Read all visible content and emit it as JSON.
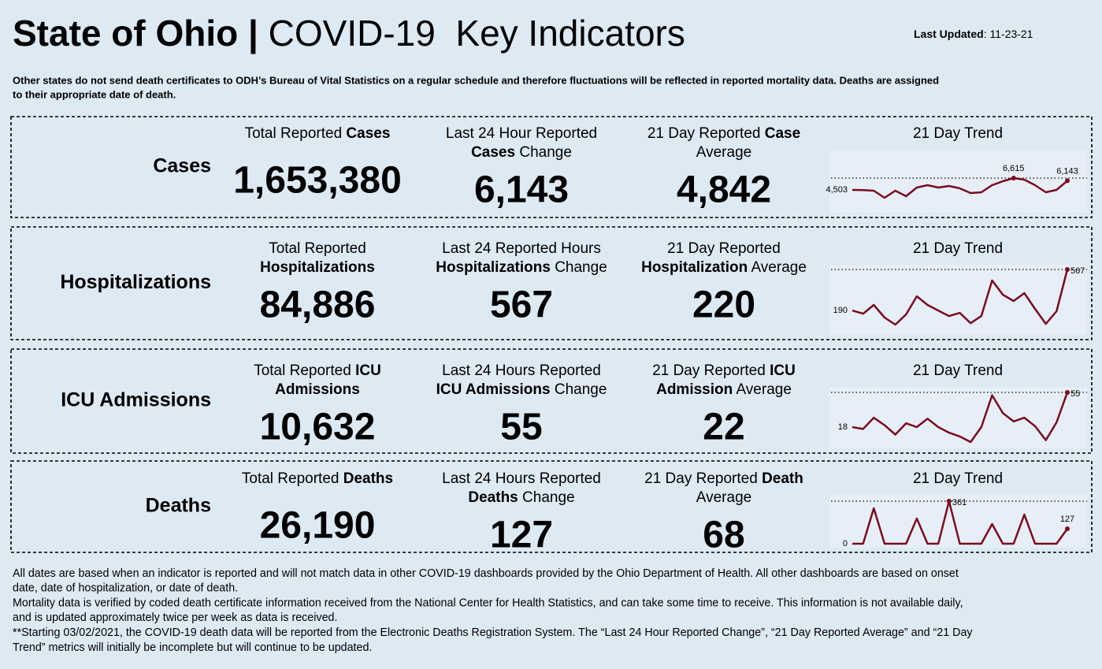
{
  "header": {
    "title": [
      {
        "text": "State of Ohio | ",
        "bold": true
      },
      {
        "text": "COVID-19  Key Indicators",
        "bold": false
      }
    ],
    "updated": [
      {
        "text": "Last Updated",
        "bold": true
      },
      {
        "text": ": 11-23-21",
        "bold": false
      }
    ],
    "note": [
      "Other states do not send death certificates to ODH’s Bureau of Vital Statistics on a regular schedule and therefore fluctuations will be reflected in reported mortality data. Deaths are assigned",
      "to their appropriate date of death."
    ]
  },
  "sections": [
    {
      "label": "Cases",
      "metrics": [
        {
          "heading": [
            [
              {
                "text": "Total Reported ",
                "bold": false
              },
              {
                "text": "Cases",
                "bold": true
              }
            ]
          ],
          "value": "1,653,380"
        },
        {
          "heading": [
            [
              {
                "text": "Last 24 Hour Reported",
                "bold": false
              }
            ],
            [
              {
                "text": "Cases",
                "bold": true
              },
              {
                "text": " Change",
                "bold": false
              }
            ]
          ],
          "value": "6,143"
        },
        {
          "heading": [
            [
              {
                "text": "21 Day Reported ",
                "bold": false
              },
              {
                "text": "Case",
                "bold": true
              }
            ],
            [
              {
                "text": "Average",
                "bold": false
              }
            ]
          ],
          "value": "4,842"
        }
      ],
      "trend": {
        "title": "21 Day Trend",
        "values": [
          4503,
          4480,
          4362,
          3095,
          4362,
          3377,
          4925,
          5348,
          4925,
          5207,
          4785,
          3940,
          4081,
          5348,
          6052,
          6615,
          6333,
          5348,
          4081,
          4503,
          6143
        ],
        "value_labels": [
          "4,503",
          null,
          null,
          null,
          null,
          null,
          null,
          null,
          null,
          null,
          null,
          null,
          null,
          null,
          null,
          "6,615",
          null,
          null,
          null,
          null,
          "6,143"
        ]
      }
    },
    {
      "label": "Hospitalizations",
      "metrics": [
        {
          "heading": [
            [
              {
                "text": "Total Reported",
                "bold": false
              }
            ],
            [
              {
                "text": "Hospitalizations",
                "bold": true
              }
            ]
          ],
          "value": "84,886"
        },
        {
          "heading": [
            [
              {
                "text": "Last 24 Reported Hours",
                "bold": false
              }
            ],
            [
              {
                "text": "Hospitalizations",
                "bold": true
              },
              {
                "text": " Change",
                "bold": false
              }
            ]
          ],
          "value": "567"
        },
        {
          "heading": [
            [
              {
                "text": "21 Day Reported",
                "bold": false
              }
            ],
            [
              {
                "text": "Hospitalization",
                "bold": true
              },
              {
                "text": " Average",
                "bold": false
              }
            ]
          ],
          "value": "220"
        }
      ],
      "trend": {
        "title": "21 Day Trend",
        "values": [
          190,
          161,
          241,
          125,
          60,
          154,
          321,
          241,
          190,
          139,
          168,
          74,
          139,
          466,
          335,
          277,
          350,
          205,
          67,
          183,
          567
        ],
        "value_labels": [
          "190",
          null,
          null,
          null,
          null,
          null,
          null,
          null,
          null,
          null,
          null,
          null,
          null,
          null,
          null,
          null,
          null,
          null,
          null,
          null,
          "567"
        ]
      }
    },
    {
      "label": "ICU Admissions",
      "metrics": [
        {
          "heading": [
            [
              {
                "text": "Total Reported ",
                "bold": false
              },
              {
                "text": "ICU",
                "bold": true
              }
            ],
            [
              {
                "text": "Admissions",
                "bold": true
              }
            ]
          ],
          "value": "10,632"
        },
        {
          "heading": [
            [
              {
                "text": "Last 24 Hours Reported",
                "bold": false
              }
            ],
            [
              {
                "text": "ICU Admissions",
                "bold": true
              },
              {
                "text": " Change",
                "bold": false
              }
            ]
          ],
          "value": "55"
        },
        {
          "heading": [
            [
              {
                "text": "21 Day Reported ",
                "bold": false
              },
              {
                "text": "ICU",
                "bold": true
              }
            ],
            [
              {
                "text": "Admission",
                "bold": true
              },
              {
                "text": " Average",
                "bold": false
              }
            ]
          ],
          "value": "22"
        }
      ],
      "trend": {
        "title": "21 Day Trend",
        "values": [
          18,
          16,
          28,
          20,
          10,
          22,
          18,
          27,
          18,
          12,
          8,
          2,
          18,
          52,
          33,
          24,
          28,
          19,
          4,
          23,
          55
        ],
        "value_labels": [
          "18",
          null,
          null,
          null,
          null,
          null,
          null,
          null,
          null,
          null,
          null,
          null,
          null,
          null,
          null,
          null,
          null,
          null,
          null,
          null,
          "55"
        ]
      }
    },
    {
      "label": "Deaths",
      "metrics": [
        {
          "heading": [
            [
              {
                "text": "Total Reported ",
                "bold": false
              },
              {
                "text": "Deaths",
                "bold": true
              }
            ]
          ],
          "value": "26,190"
        },
        {
          "heading": [
            [
              {
                "text": "Last 24 Hours Reported",
                "bold": false
              }
            ],
            [
              {
                "text": "Deaths",
                "bold": true
              },
              {
                "text": " Change",
                "bold": false
              }
            ]
          ],
          "value": "127"
        },
        {
          "heading": [
            [
              {
                "text": "21 Day Reported ",
                "bold": false
              },
              {
                "text": "Death",
                "bold": true
              }
            ],
            [
              {
                "text": "Average",
                "bold": false
              }
            ]
          ],
          "value": "68"
        }
      ],
      "trend": {
        "title": "21 Day Trend",
        "values": [
          0,
          0,
          301,
          0,
          0,
          0,
          214,
          0,
          0,
          361,
          0,
          0,
          0,
          167,
          0,
          0,
          247,
          0,
          0,
          0,
          127
        ],
        "value_labels": [
          "0",
          null,
          null,
          null,
          null,
          null,
          null,
          null,
          null,
          "361",
          null,
          null,
          null,
          null,
          null,
          null,
          null,
          null,
          null,
          null,
          "127"
        ]
      }
    }
  ],
  "footer": [
    "All dates are based when an indicator is reported and will not match data in other COVID-19 dashboards provided by the Ohio Department of Health. All other dashboards are based on onset",
    "date, date of hospitalization, or date of death.",
    "Mortality data is verified by coded death certificate information received from the National Center for Health Statistics, and can take some time to receive. This information is not available daily,",
    "and is updated approximately twice per week as data is received.",
    "**Starting 03/02/2021, the COVID-19 death data will be reported from the Electronic Deaths Registration System. The “Last 24 Hour Reported Change”, “21 Day Reported Average” and “21 Day",
    "Trend” metrics will initially be incomplete but will continue to be updated."
  ]
}
